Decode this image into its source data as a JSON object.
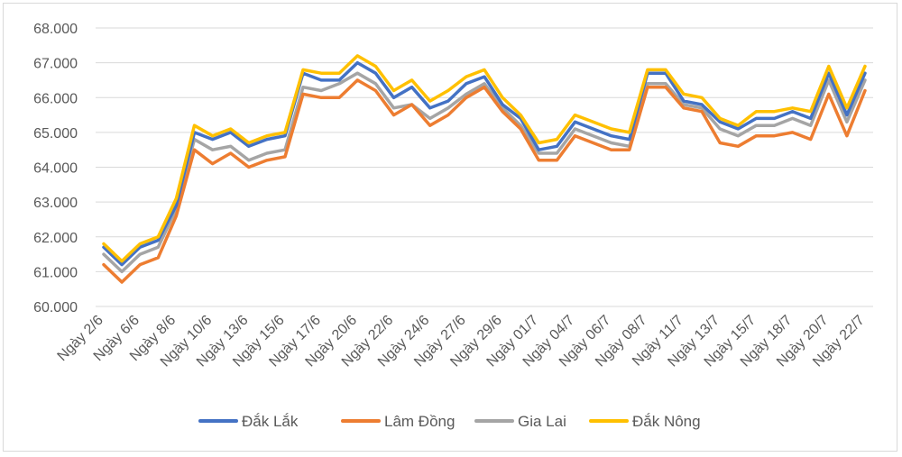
{
  "chart_data": {
    "type": "line",
    "title": "",
    "xlabel": "",
    "ylabel": "",
    "ylim": [
      60000,
      68000
    ],
    "y_ticks": [
      "60.000",
      "61.000",
      "62.000",
      "63.000",
      "64.000",
      "65.000",
      "66.000",
      "67.000",
      "68.000"
    ],
    "grid": "horizontal",
    "legend_position": "bottom",
    "x_tick_labels": [
      "Ngày 2/6",
      "Ngày 6/6",
      "Ngày 8/6",
      "Ngày 10/6",
      "Ngày 13/6",
      "Ngày 15/6",
      "Ngày 17/6",
      "Ngày 20/6",
      "Ngày 22/6",
      "Ngày 24/6",
      "Ngày 27/6",
      "Ngày 29/6",
      "Ngày 01/7",
      "Ngày 04/7",
      "Ngày 06/7",
      "Ngày 08/7",
      "Ngày 11/7",
      "Ngày 13/7",
      "Ngày 15/7",
      "Ngày 18/7",
      "Ngày 20/7",
      "Ngày 22/7"
    ],
    "x_tick_every": 2,
    "series": [
      {
        "name": "Đắk Lắk",
        "color": "#4472C4",
        "values": [
          61700,
          61200,
          61700,
          61900,
          62900,
          65000,
          64800,
          65000,
          64600,
          64800,
          64900,
          66700,
          66500,
          66500,
          67000,
          66700,
          66000,
          66300,
          65700,
          65900,
          66400,
          66600,
          65800,
          65400,
          64500,
          64600,
          65300,
          65100,
          64900,
          64800,
          66700,
          66700,
          65900,
          65800,
          65300,
          65100,
          65400,
          65400,
          65600,
          65400,
          66700,
          65500,
          66700
        ]
      },
      {
        "name": "Lâm Đồng",
        "color": "#ED7D31",
        "values": [
          61200,
          60700,
          61200,
          61400,
          62600,
          64500,
          64100,
          64400,
          64000,
          64200,
          64300,
          66100,
          66000,
          66000,
          66500,
          66200,
          65500,
          65800,
          65200,
          65500,
          66000,
          66300,
          65600,
          65100,
          64200,
          64200,
          64900,
          64700,
          64500,
          64500,
          66300,
          66300,
          65700,
          65600,
          64700,
          64600,
          64900,
          64900,
          65000,
          64800,
          66100,
          64900,
          66200
        ]
      },
      {
        "name": "Gia Lai",
        "color": "#A5A5A5",
        "values": [
          61500,
          61000,
          61500,
          61700,
          62800,
          64800,
          64500,
          64600,
          64200,
          64400,
          64500,
          66300,
          66200,
          66400,
          66700,
          66400,
          65700,
          65800,
          65400,
          65700,
          66100,
          66400,
          65700,
          65200,
          64400,
          64400,
          65100,
          64900,
          64700,
          64600,
          66400,
          66400,
          65800,
          65700,
          65100,
          64900,
          65200,
          65200,
          65400,
          65200,
          66500,
          65300,
          66500
        ]
      },
      {
        "name": "Đắk Nông",
        "color": "#FFC000",
        "values": [
          61800,
          61300,
          61800,
          62000,
          63100,
          65200,
          64900,
          65100,
          64700,
          64900,
          65000,
          66800,
          66700,
          66700,
          67200,
          66900,
          66200,
          66500,
          65900,
          66200,
          66600,
          66800,
          66000,
          65500,
          64700,
          64800,
          65500,
          65300,
          65100,
          65000,
          66800,
          66800,
          66100,
          66000,
          65400,
          65200,
          65600,
          65600,
          65700,
          65600,
          66900,
          65700,
          66900
        ]
      }
    ]
  }
}
